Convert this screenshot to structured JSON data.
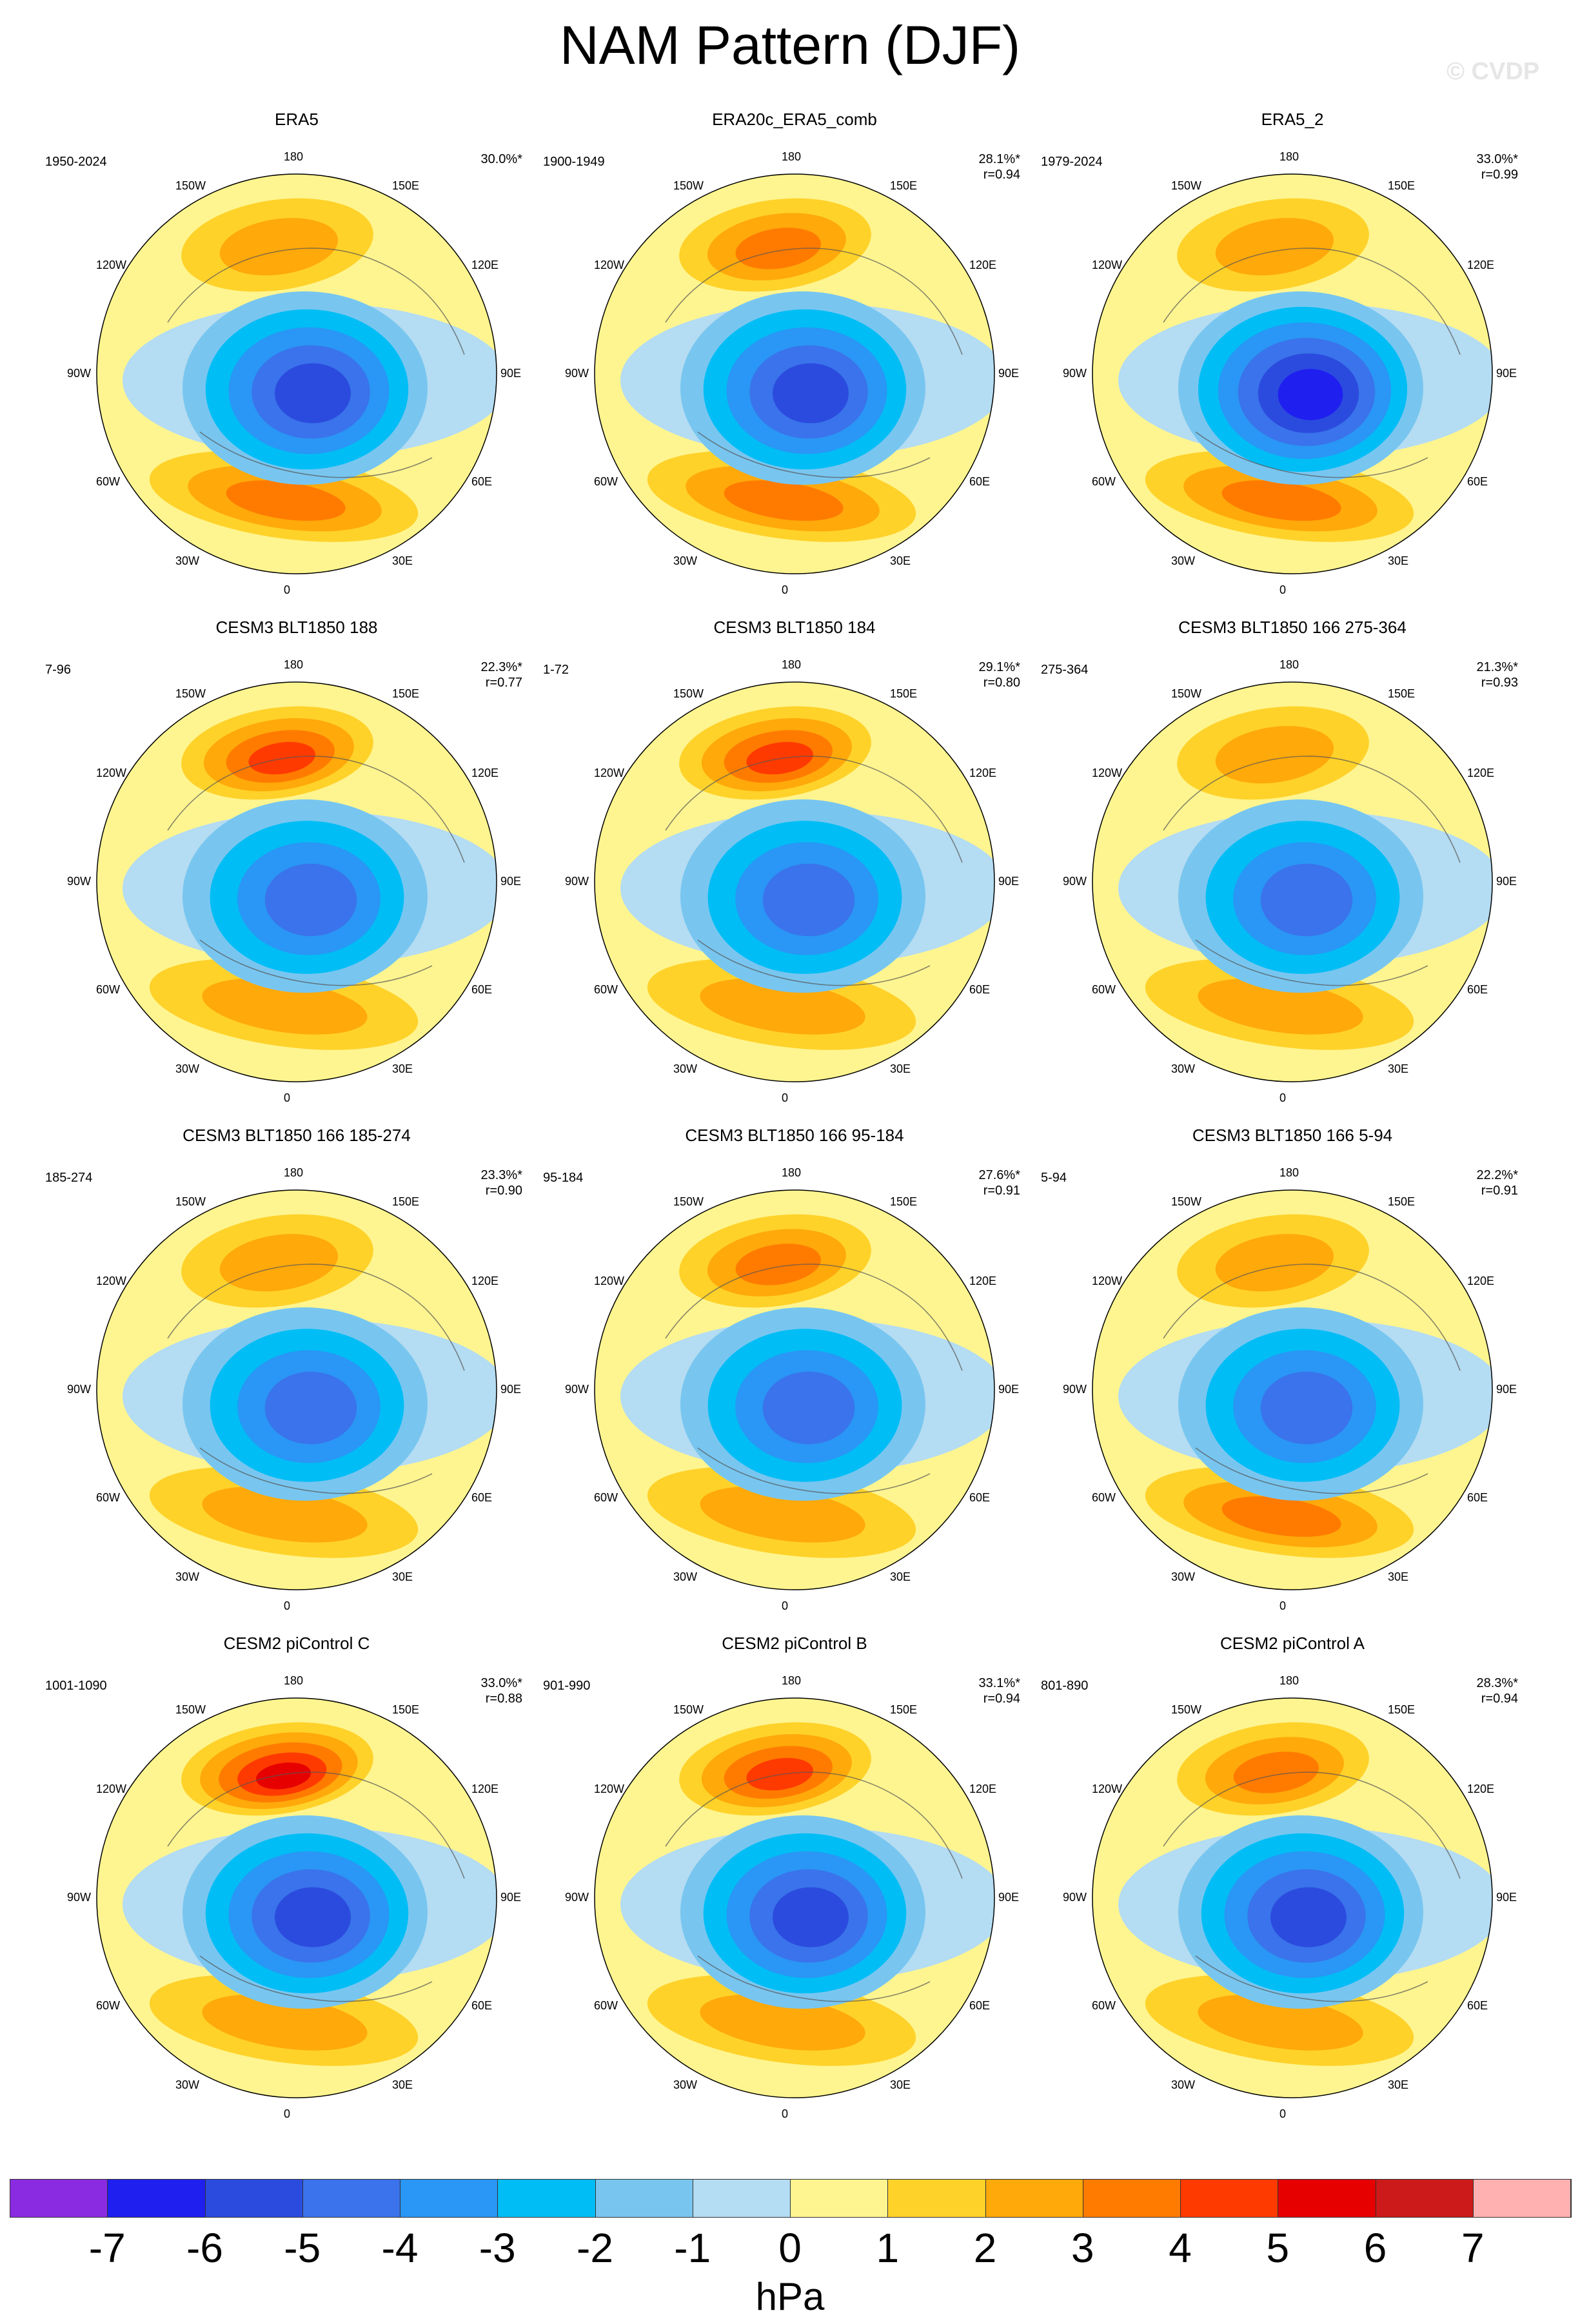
{
  "title": "NAM Pattern (DJF)",
  "watermark": "© CVDP",
  "lon_labels": [
    "180",
    "150E",
    "120E",
    "90E",
    "60E",
    "30E",
    "0",
    "30W",
    "60W",
    "90W",
    "120W",
    "150W"
  ],
  "colorbar": {
    "colors": [
      "#8a2be2",
      "#1f1ff0",
      "#2b4bde",
      "#3a73eb",
      "#2a96f5",
      "#00bdf5",
      "#78c6f0",
      "#b4dcf2",
      "#fff590",
      "#ffd22a",
      "#ffa90a",
      "#ff7b00",
      "#ff3a00",
      "#e60000",
      "#cc1a1a",
      "#ffb0b0"
    ],
    "labels": [
      "-7",
      "-6",
      "-5",
      "-4",
      "-3",
      "-2",
      "-1",
      "0",
      "1",
      "2",
      "3",
      "4",
      "5",
      "6",
      "7"
    ],
    "units": "hPa"
  },
  "chart_data": {
    "type": "heatmap",
    "projection": "north polar stereographic",
    "variable": "NAM Pattern (DJF)",
    "units": "hPa",
    "color_levels": [
      -7,
      -6,
      -5,
      -4,
      -3,
      -2,
      -1,
      0,
      1,
      2,
      3,
      4,
      5,
      6,
      7
    ],
    "panels": [
      {
        "title": "ERA5",
        "period": "1950-2024",
        "pct_variance": "30.0%*",
        "corr": "",
        "arctic_min": -5.5,
        "pacific_max": 2.0,
        "atlantic_max": 3.5
      },
      {
        "title": "ERA20c_ERA5_comb",
        "period": "1900-1949",
        "pct_variance": "28.1%*",
        "corr": "r=0.94",
        "arctic_min": -5.0,
        "pacific_max": 3.5,
        "atlantic_max": 3.0
      },
      {
        "title": "ERA5_2",
        "period": "1979-2024",
        "pct_variance": "33.0%*",
        "corr": "r=0.99",
        "arctic_min": -6.0,
        "pacific_max": 2.0,
        "atlantic_max": 3.5
      },
      {
        "title": "CESM3 BLT1850 188",
        "period": "7-96",
        "pct_variance": "22.3%*",
        "corr": "r=0.77",
        "arctic_min": -4.5,
        "pacific_max": 4.5,
        "atlantic_max": 2.0
      },
      {
        "title": "CESM3 BLT1850 184",
        "period": "1-72",
        "pct_variance": "29.1%*",
        "corr": "r=0.80",
        "arctic_min": -4.5,
        "pacific_max": 4.5,
        "atlantic_max": 2.0
      },
      {
        "title": "CESM3 BLT1850 166 275-364",
        "period": "275-364",
        "pct_variance": "21.3%*",
        "corr": "r=0.93",
        "arctic_min": -4.5,
        "pacific_max": 2.5,
        "atlantic_max": 2.5
      },
      {
        "title": "CESM3 BLT1850 166 185-274",
        "period": "185-274",
        "pct_variance": "23.3%*",
        "corr": "r=0.90",
        "arctic_min": -4.5,
        "pacific_max": 2.5,
        "atlantic_max": 2.5
      },
      {
        "title": "CESM3 BLT1850 166 95-184",
        "period": "95-184",
        "pct_variance": "27.6%*",
        "corr": "r=0.91",
        "arctic_min": -4.5,
        "pacific_max": 3.5,
        "atlantic_max": 2.5
      },
      {
        "title": "CESM3 BLT1850 166 5-94",
        "period": "5-94",
        "pct_variance": "22.2%*",
        "corr": "r=0.91",
        "arctic_min": -4.5,
        "pacific_max": 2.5,
        "atlantic_max": 3.0
      },
      {
        "title": "CESM2 piControl C",
        "period": "1001-1090",
        "pct_variance": "33.0%*",
        "corr": "r=0.88",
        "arctic_min": -5.0,
        "pacific_max": 5.0,
        "atlantic_max": 2.5
      },
      {
        "title": "CESM2 piControl B",
        "period": "901-990",
        "pct_variance": "33.1%*",
        "corr": "r=0.94",
        "arctic_min": -5.5,
        "pacific_max": 4.5,
        "atlantic_max": 2.5
      },
      {
        "title": "CESM2 piControl A",
        "period": "801-890",
        "pct_variance": "28.3%*",
        "corr": "r=0.94",
        "arctic_min": -5.5,
        "pacific_max": 3.5,
        "atlantic_max": 2.5
      }
    ]
  }
}
